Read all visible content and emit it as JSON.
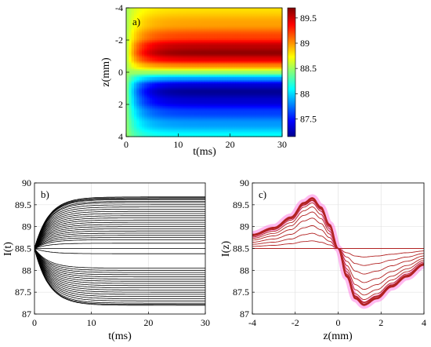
{
  "chart_data": [
    {
      "panel": "a)",
      "type": "heatmap",
      "xlabel": "t(ms)",
      "ylabel": "z(mm)",
      "xlim": [
        0,
        30
      ],
      "ylim": [
        -4,
        4
      ],
      "y_reversed": true,
      "x_ticks": [
        "0",
        "10",
        "20",
        "30"
      ],
      "y_ticks": [
        "-4",
        "-2",
        "0",
        "2",
        "4"
      ],
      "colorbar": {
        "range": [
          87.15,
          89.7
        ],
        "ticks": [
          "87.5",
          "88",
          "88.5",
          "89",
          "89.5"
        ],
        "colormap": "jet"
      },
      "initial_value": 88.5,
      "z_profile": [
        {
          "z": -4.0,
          "v": 88.82
        },
        {
          "z": -3.0,
          "v": 88.98
        },
        {
          "z": -2.2,
          "v": 89.22
        },
        {
          "z": -1.6,
          "v": 89.55
        },
        {
          "z": -1.2,
          "v": 89.66
        },
        {
          "z": -0.8,
          "v": 89.45
        },
        {
          "z": -0.4,
          "v": 89.05
        },
        {
          "z": 0.0,
          "v": 88.5
        },
        {
          "z": 0.4,
          "v": 87.85
        },
        {
          "z": 0.8,
          "v": 87.35
        },
        {
          "z": 1.2,
          "v": 87.2
        },
        {
          "z": 1.8,
          "v": 87.35
        },
        {
          "z": 2.5,
          "v": 87.62
        },
        {
          "z": 3.2,
          "v": 87.85
        },
        {
          "z": 4.0,
          "v": 88.12
        }
      ],
      "time_constant_ms": 2.5
    },
    {
      "panel": "b)",
      "type": "line",
      "xlabel": "t(ms)",
      "ylabel": "I(t)",
      "xlim": [
        0,
        30
      ],
      "ylim": [
        87,
        90
      ],
      "x_ticks": [
        "0",
        "10",
        "20",
        "30"
      ],
      "y_ticks": [
        "87",
        "87.5",
        "88",
        "88.5",
        "89",
        "89.5",
        "90"
      ],
      "line_color": "#000000",
      "start_value": 88.5,
      "steady_values": [
        89.68,
        89.66,
        89.64,
        89.62,
        89.58,
        89.55,
        89.5,
        89.45,
        89.4,
        89.35,
        89.3,
        89.25,
        89.2,
        89.15,
        89.1,
        89.05,
        89.0,
        88.95,
        88.9,
        88.85,
        88.8,
        88.75,
        88.7,
        88.62,
        88.5,
        88.38,
        88.05,
        88.0,
        87.95,
        87.9,
        87.85,
        87.8,
        87.75,
        87.7,
        87.65,
        87.6,
        87.55,
        87.5,
        87.45,
        87.4,
        87.35,
        87.3,
        87.25,
        87.22,
        87.2
      ]
    },
    {
      "panel": "c)",
      "type": "line",
      "xlabel": "z(mm)",
      "ylabel": "I(z)",
      "xlim": [
        -4,
        4
      ],
      "ylim": [
        87,
        90
      ],
      "x_ticks": [
        "-4",
        "-2",
        "0",
        "2",
        "4"
      ],
      "y_ticks": [
        "87",
        "87.5",
        "88",
        "88.5",
        "89",
        "89.5",
        "90"
      ],
      "reference_level": 88.5,
      "curve_color": "#b22222",
      "band_color": "#ff66dd",
      "amplitude_fractions": [
        0.15,
        0.3,
        0.45,
        0.6,
        0.72,
        0.82,
        0.9,
        0.95,
        0.98,
        1.0
      ]
    }
  ]
}
